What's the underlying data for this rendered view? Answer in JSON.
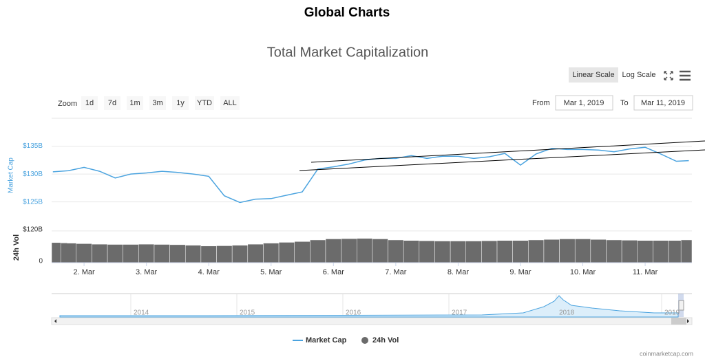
{
  "page": {
    "heading": "Global Charts",
    "credit": "coinmarketcap.com"
  },
  "controls": {
    "scale_buttons": [
      "Linear Scale",
      "Log Scale"
    ],
    "zoom_label": "Zoom",
    "zoom_buttons": [
      "1d",
      "7d",
      "1m",
      "3m",
      "1y",
      "YTD",
      "ALL"
    ],
    "from_label": "From",
    "from_value": "Mar 1, 2019",
    "to_label": "To",
    "to_value": "Mar 11, 2019"
  },
  "navigator": {
    "labels": [
      "2014",
      "2015",
      "2016",
      "2017",
      "2018",
      "2019"
    ]
  },
  "chart_data": {
    "type": "line",
    "title": "Total Market Capitalization",
    "y_label": "Market Cap",
    "y2_label": "24h Vol",
    "x": [
      1.5,
      1.75,
      2.0,
      2.25,
      2.5,
      2.75,
      3.0,
      3.25,
      3.5,
      3.75,
      4.0,
      4.25,
      4.5,
      4.75,
      5.0,
      5.25,
      5.5,
      5.75,
      6.0,
      6.25,
      6.5,
      6.75,
      7.0,
      7.25,
      7.5,
      7.75,
      8.0,
      8.25,
      8.5,
      8.75,
      9.0,
      9.25,
      9.5,
      9.75,
      10.0,
      10.25,
      10.5,
      10.75,
      11.0,
      11.25,
      11.5,
      11.7
    ],
    "xlim": [
      1.48,
      11.75
    ],
    "xticks": [
      {
        "value": 2,
        "label": "2. Mar"
      },
      {
        "value": 3,
        "label": "3. Mar"
      },
      {
        "value": 4,
        "label": "4. Mar"
      },
      {
        "value": 5,
        "label": "5. Mar"
      },
      {
        "value": 6,
        "label": "6. Mar"
      },
      {
        "value": 7,
        "label": "7. Mar"
      },
      {
        "value": 8,
        "label": "8. Mar"
      },
      {
        "value": 9,
        "label": "9. Mar"
      },
      {
        "value": 10,
        "label": "10. Mar"
      },
      {
        "value": 11,
        "label": "11. Mar"
      }
    ],
    "ylim": [
      122,
      140
    ],
    "yticks": [
      {
        "value": 125,
        "label": "$125B"
      },
      {
        "value": 130,
        "label": "$130B"
      },
      {
        "value": 135,
        "label": "$135B"
      }
    ],
    "y2lim": [
      0,
      125
    ],
    "y2ticks": [
      0,
      {
        "value": 120,
        "label": "$120B"
      }
    ],
    "series": [
      {
        "name": "Market Cap",
        "color": "#4aa3df",
        "values": [
          130.4,
          130.6,
          131.2,
          130.5,
          129.3,
          130.0,
          130.2,
          130.5,
          130.3,
          130.0,
          129.6,
          126.1,
          124.9,
          125.5,
          125.6,
          126.2,
          126.8,
          130.9,
          131.3,
          131.8,
          132.5,
          132.8,
          132.8,
          133.3,
          132.8,
          133.2,
          133.2,
          132.8,
          133.1,
          133.7,
          131.6,
          133.6,
          134.6,
          134.4,
          134.4,
          134.3,
          134.0,
          134.5,
          134.8,
          133.6,
          132.3,
          132.4
        ]
      },
      {
        "name": "24h Vol",
        "color": "#6b6b6b",
        "axis": "y2",
        "values": [
          76,
          74,
          72,
          70,
          69,
          69,
          70,
          69,
          68,
          66,
          63,
          64,
          66,
          70,
          74,
          77,
          80,
          86,
          90,
          91,
          92,
          90,
          86,
          84,
          83,
          82,
          82,
          82,
          83,
          84,
          84,
          86,
          88,
          90,
          90,
          88,
          86,
          85,
          84,
          84,
          84,
          86
        ]
      }
    ]
  }
}
